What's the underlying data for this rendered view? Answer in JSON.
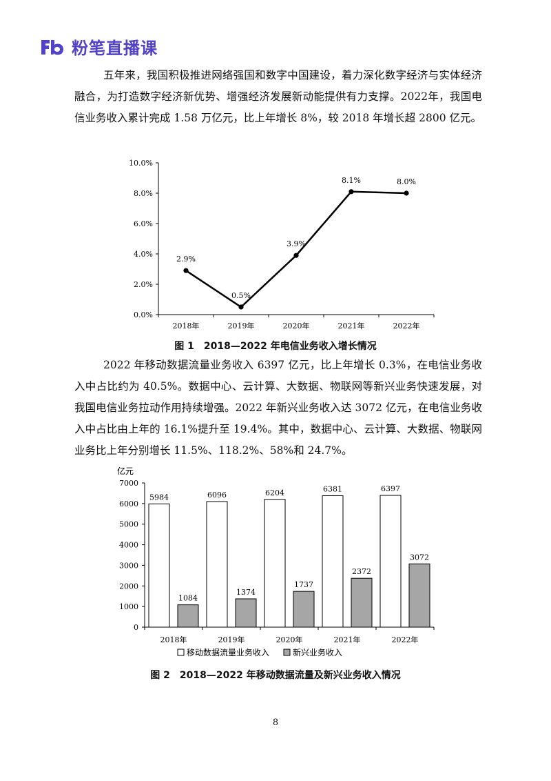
{
  "header": {
    "brand": "粉笔直播课",
    "brand_color": "#5142c7"
  },
  "paragraphs": {
    "p1": "五年来，我国积极推进网络强国和数字中国建设，着力深化数字经济与实体经济融合，为打造数字经济新优势、增强经济发展新动能提供有力支撑。2022年，我国电信业务收入累计完成 1.58 万亿元，比上年增长 8%，较 2018 年增长超 2800 亿元。",
    "p2": "2022 年移动数据流量业务收入 6397 亿元，比上年增长 0.3%，在电信业务收入中占比约为 40.5%。数据中心、云计算、大数据、物联网等新兴业务快速发展，对我国电信业务拉动作用持续增强。2022 年新兴业务收入达 3072 亿元，在电信业务收入中占比由上年的 16.1%提升至 19.4%。其中，数据中心、云计算、大数据、物联网业务比上年分别增长 11.5%、118.2%、58%和 24.7%。"
  },
  "captions": {
    "fig1": "图 1　2018—2022 年电信业务收入增长情况",
    "fig2": "图 2　2018—2022 年移动数据流量及新兴业务收入情况"
  },
  "page_number": "8",
  "chart_data": [
    {
      "type": "line",
      "categories": [
        "2018年",
        "2019年",
        "2020年",
        "2021年",
        "2022年"
      ],
      "series": [
        {
          "values": [
            2.9,
            0.5,
            3.9,
            8.1,
            8.0
          ],
          "labels": [
            "2.9%",
            "0.5%",
            "3.9%",
            "8.1%",
            "8.0%"
          ]
        }
      ],
      "ylim": [
        0,
        10
      ],
      "yticks": [
        "0.0%",
        "2.0%",
        "4.0%",
        "6.0%",
        "8.0%",
        "10.0%"
      ],
      "grid": false,
      "line_color": "#000000"
    },
    {
      "type": "bar",
      "categories": [
        "2018年",
        "2019年",
        "2020年",
        "2021年",
        "2022年"
      ],
      "series": [
        {
          "name": "移动数据流量业务收入",
          "values": [
            5984,
            6096,
            6204,
            6381,
            6397
          ],
          "color": "#ffffff"
        },
        {
          "name": "新兴业务收入",
          "values": [
            1084,
            1374,
            1737,
            2372,
            3072
          ],
          "color": "#a6a6a6"
        }
      ],
      "ylabel": "亿元",
      "ylim": [
        0,
        7000
      ],
      "yticks": [
        "0",
        "1000",
        "2000",
        "3000",
        "4000",
        "5000",
        "6000",
        "7000"
      ],
      "legend": "bottom",
      "grid": false
    }
  ]
}
